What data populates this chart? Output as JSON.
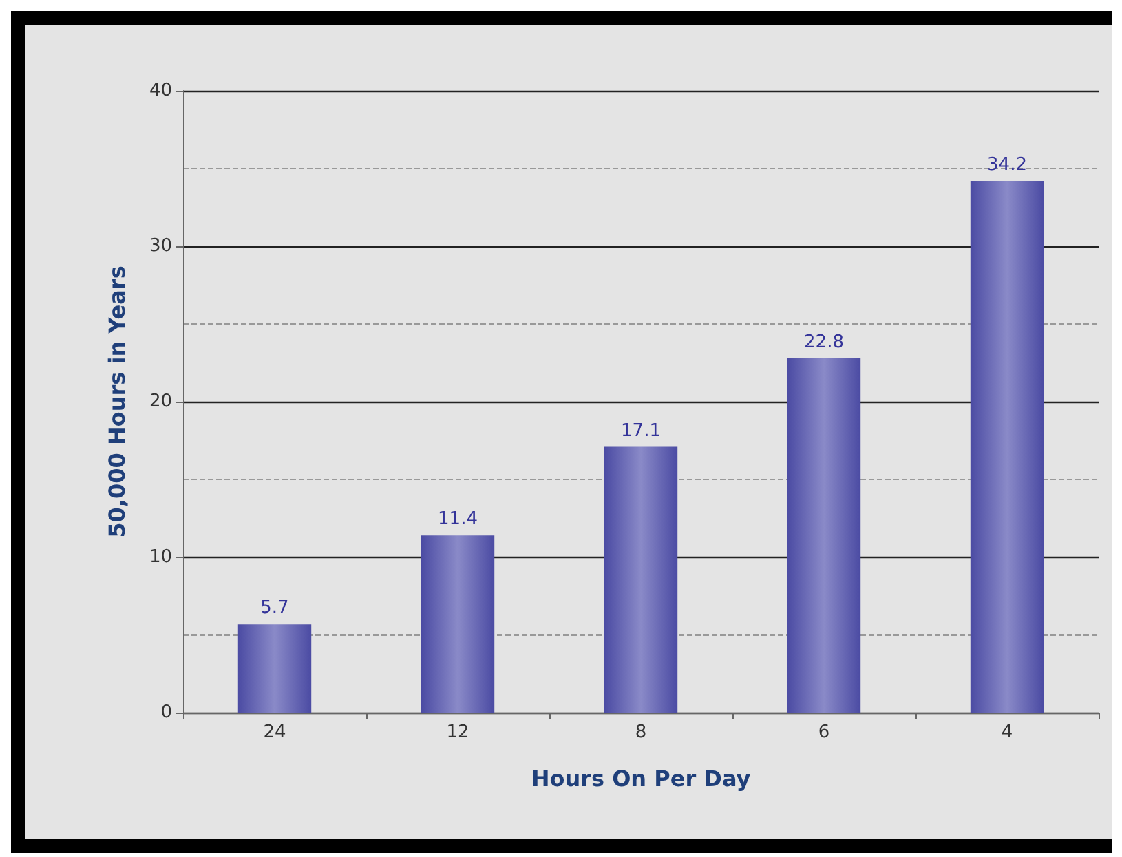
{
  "chart_data": {
    "type": "bar",
    "xlabel": "Hours On Per Day",
    "ylabel": "50,000 Hours in Years",
    "categories": [
      "24",
      "12",
      "8",
      "6",
      "4"
    ],
    "values": [
      5.7,
      11.4,
      17.1,
      22.8,
      34.2
    ],
    "color": "#4b4ba3",
    "ylim": [
      0,
      40
    ],
    "yticks": [
      0,
      10,
      20,
      30,
      40
    ],
    "grid": "y",
    "data_labels": true
  }
}
